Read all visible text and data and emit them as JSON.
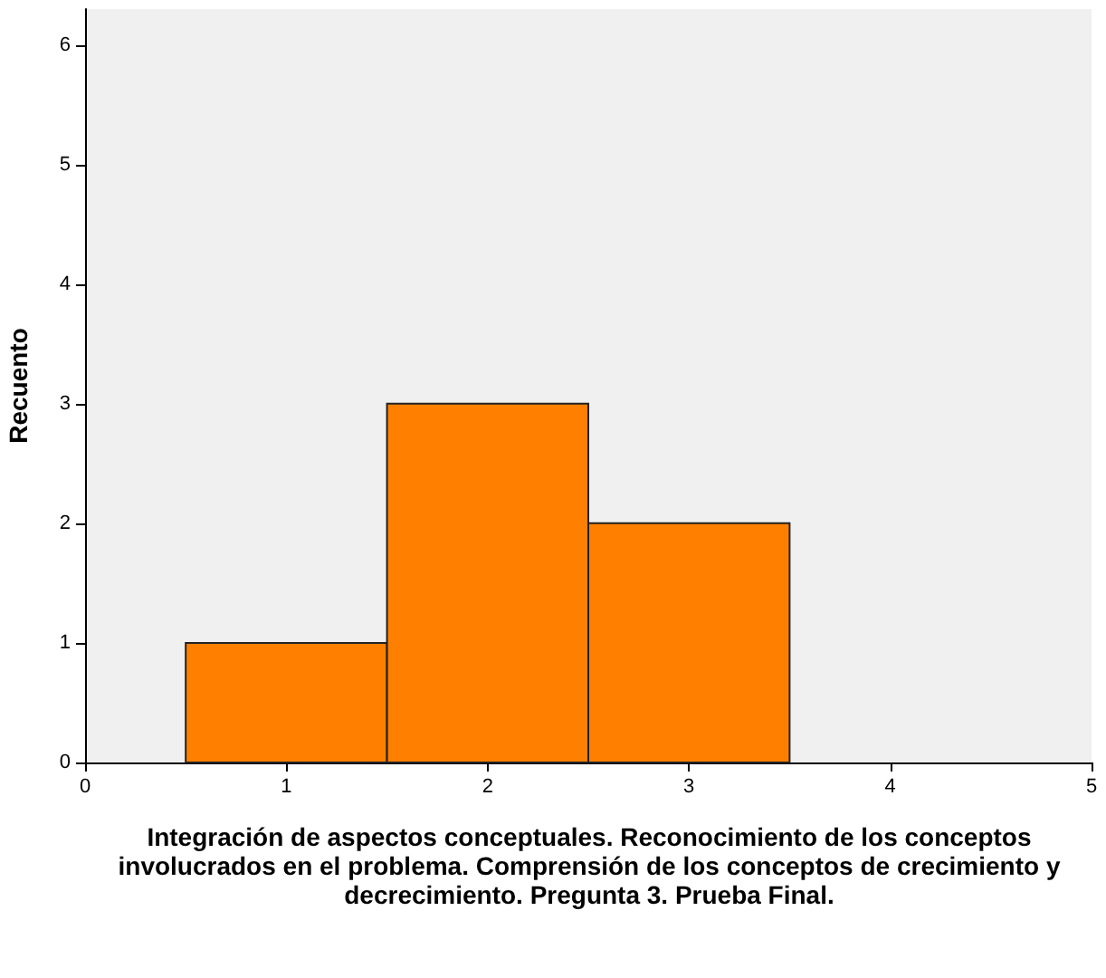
{
  "chart_data": {
    "type": "histogram",
    "xlabel": "Integración de aspectos conceptuales. Reconocimiento de los conceptos involucrados en el problema. Comprensión de los conceptos de crecimiento y decrecimiento. Pregunta 3. Prueba Final.",
    "ylabel": "Recuento",
    "bins": [
      0.5,
      1.5,
      2.5,
      3.5
    ],
    "values": [
      1,
      3,
      2
    ],
    "color": "#ff8000",
    "xlim": [
      0,
      5
    ],
    "xticks": [
      0,
      1,
      2,
      3,
      4,
      5
    ],
    "ylim": [
      0,
      6.3
    ],
    "yticks": [
      0,
      1,
      2,
      3,
      4,
      5,
      6
    ],
    "grid": false
  }
}
